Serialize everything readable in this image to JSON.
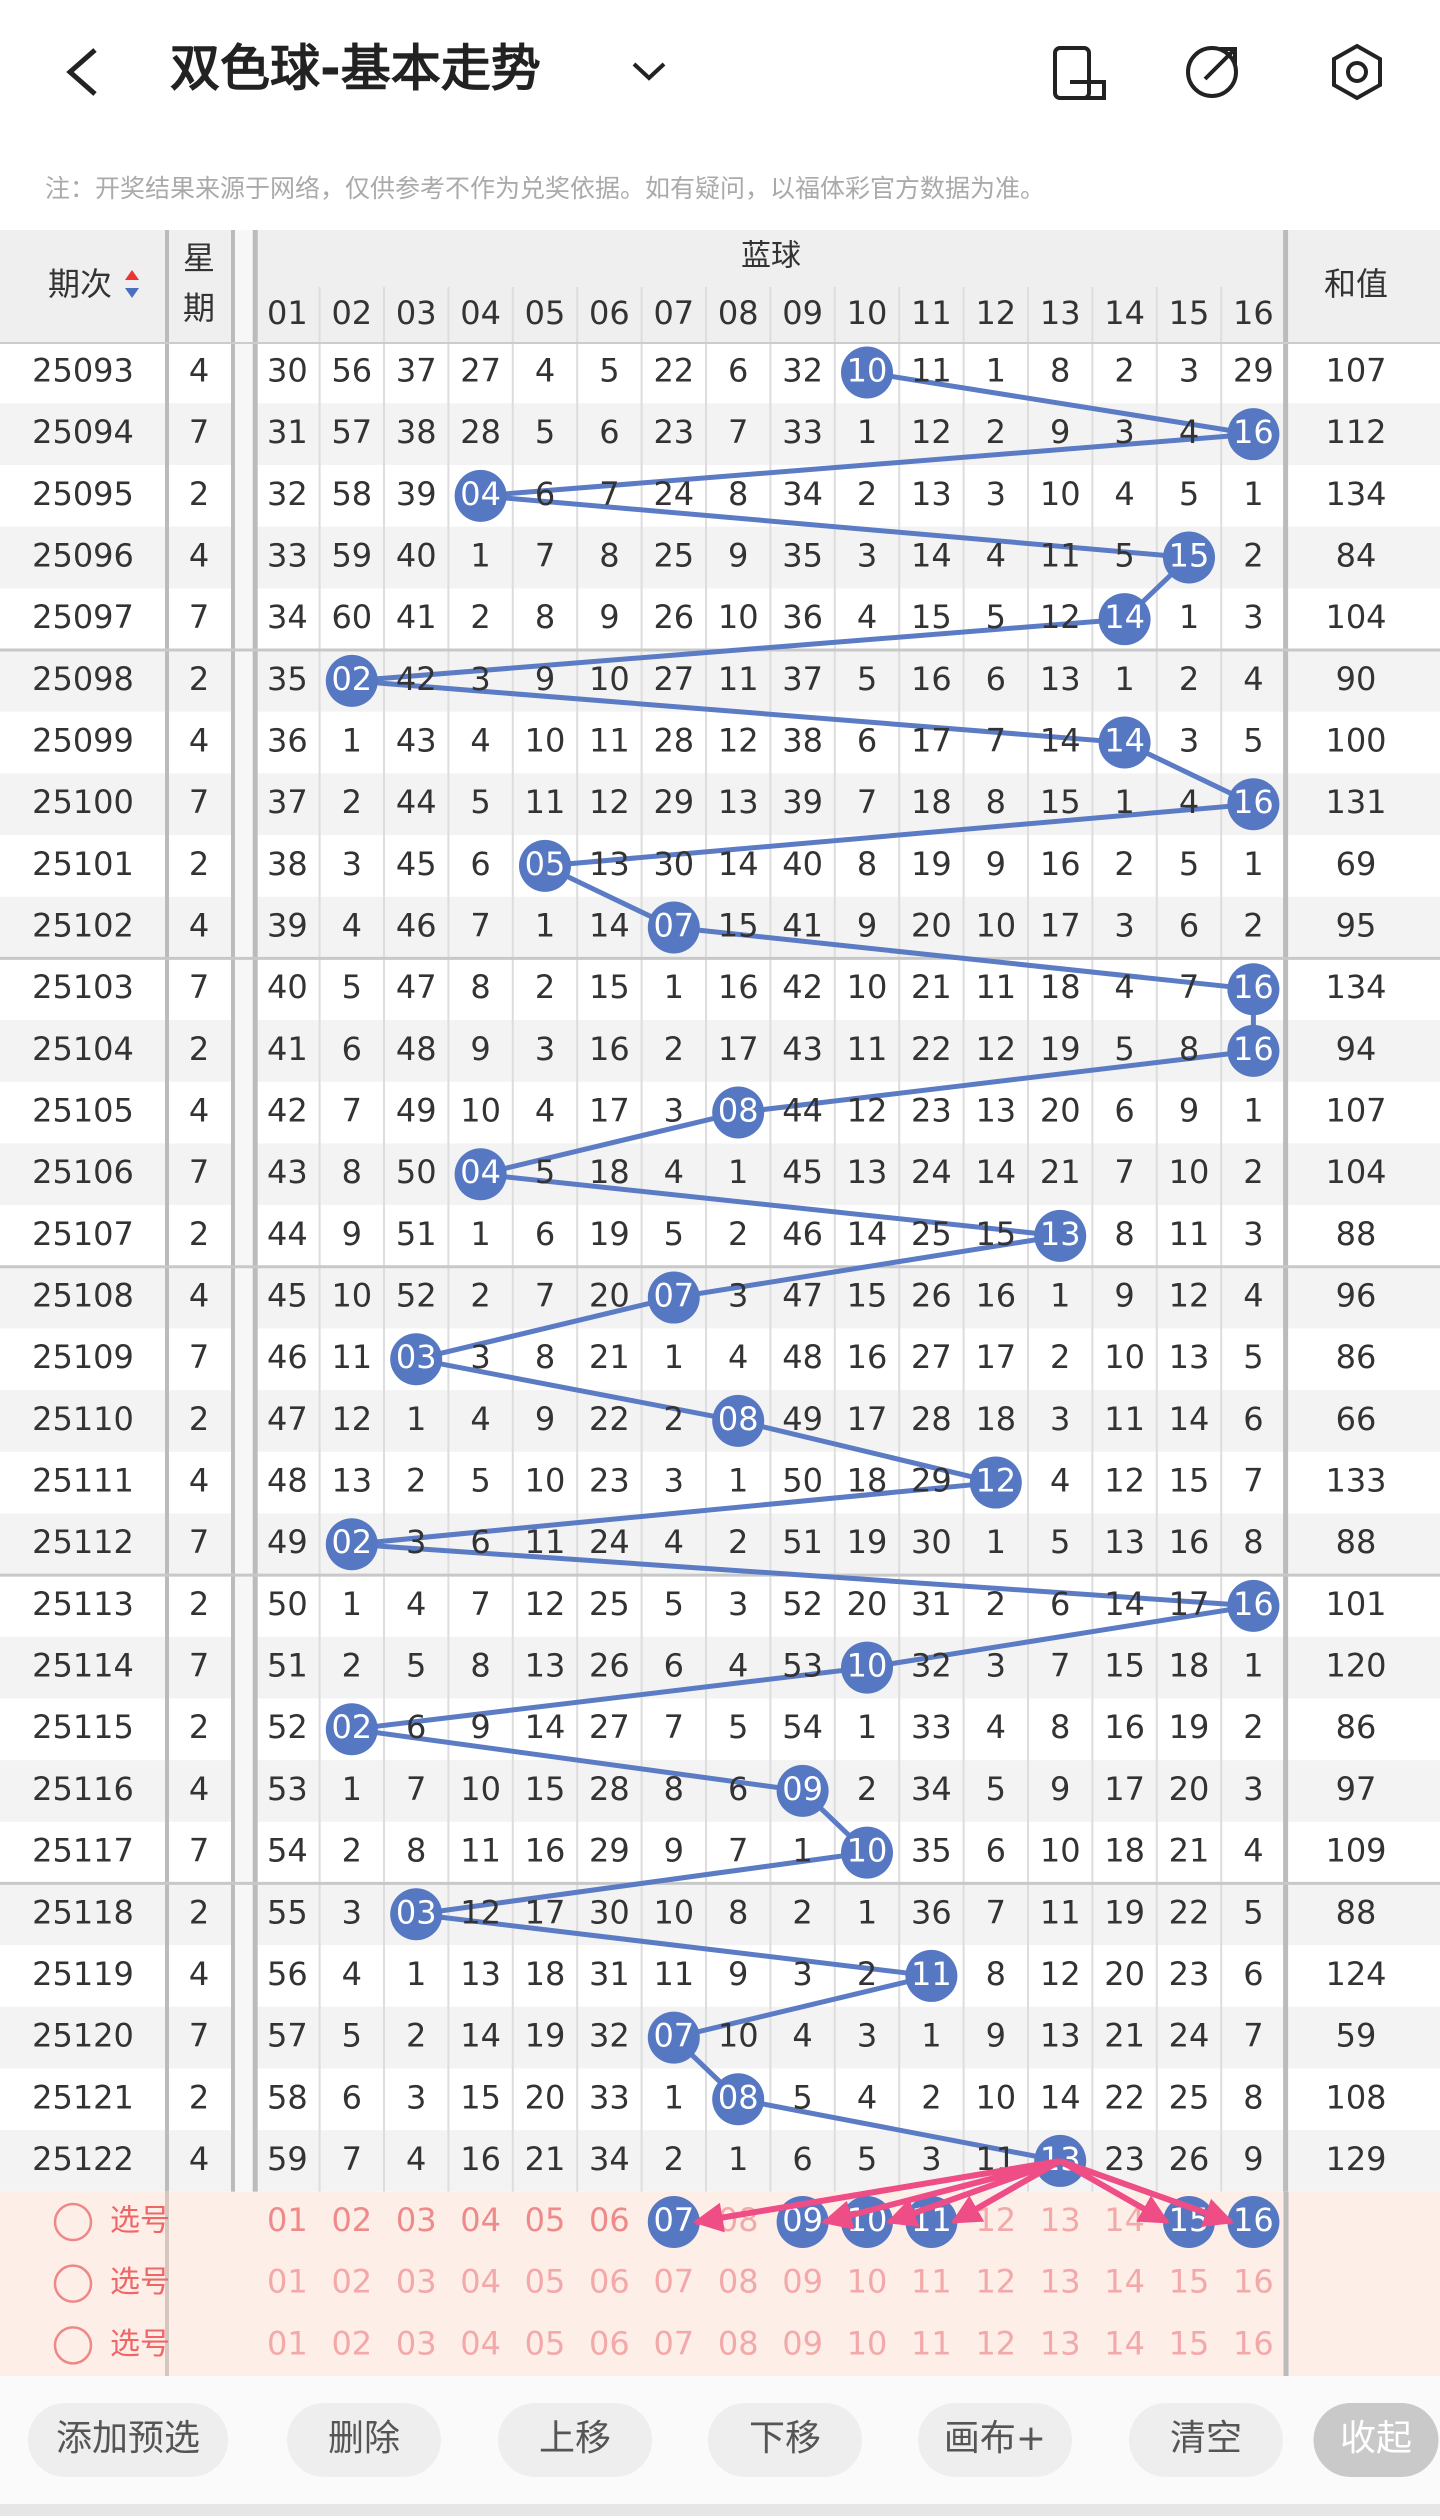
{
  "header": {
    "title": "双色球-基本走势",
    "note": "注：开奖结果来源于网络，仅供参考不作为兑奖依据。如有疑问，以福体彩官方数据为准。"
  },
  "table": {
    "col_period": "期次",
    "col_weekday_1": "星",
    "col_weekday_2": "期",
    "col_group": "蓝球",
    "col_sum": "和值",
    "numbers": [
      "01",
      "02",
      "03",
      "04",
      "05",
      "06",
      "07",
      "08",
      "09",
      "10",
      "11",
      "12",
      "13",
      "14",
      "15",
      "16"
    ],
    "rows": [
      {
        "period": 25093,
        "weekday": 4,
        "cells": [
          30,
          56,
          37,
          27,
          4,
          5,
          22,
          6,
          32,
          {
            "ball": "10"
          },
          11,
          1,
          8,
          2,
          3,
          29
        ],
        "sum": 107
      },
      {
        "period": 25094,
        "weekday": 7,
        "cells": [
          31,
          57,
          38,
          28,
          5,
          6,
          23,
          7,
          33,
          1,
          12,
          2,
          9,
          3,
          4,
          {
            "ball": "16"
          }
        ],
        "sum": 112
      },
      {
        "period": 25095,
        "weekday": 2,
        "cells": [
          32,
          58,
          39,
          {
            "ball": "04"
          },
          6,
          7,
          24,
          8,
          34,
          2,
          13,
          3,
          10,
          4,
          5,
          1
        ],
        "sum": 134
      },
      {
        "period": 25096,
        "weekday": 4,
        "cells": [
          33,
          59,
          40,
          1,
          7,
          8,
          25,
          9,
          35,
          3,
          14,
          4,
          11,
          5,
          {
            "ball": "15"
          },
          2
        ],
        "sum": 84
      },
      {
        "period": 25097,
        "weekday": 7,
        "cells": [
          34,
          60,
          41,
          2,
          8,
          9,
          26,
          10,
          36,
          4,
          15,
          5,
          12,
          {
            "ball": "14"
          },
          1,
          3
        ],
        "sum": 104
      },
      {
        "period": 25098,
        "weekday": 2,
        "cells": [
          35,
          {
            "ball": "02"
          },
          42,
          3,
          9,
          10,
          27,
          11,
          37,
          5,
          16,
          6,
          13,
          1,
          2,
          4
        ],
        "sum": 90
      },
      {
        "period": 25099,
        "weekday": 4,
        "cells": [
          36,
          1,
          43,
          4,
          10,
          11,
          28,
          12,
          38,
          6,
          17,
          7,
          14,
          {
            "ball": "14"
          },
          3,
          5
        ],
        "sum": 100
      },
      {
        "period": 25100,
        "weekday": 7,
        "cells": [
          37,
          2,
          44,
          5,
          11,
          12,
          29,
          13,
          39,
          7,
          18,
          8,
          15,
          1,
          4,
          {
            "ball": "16"
          }
        ],
        "sum": 131
      },
      {
        "period": 25101,
        "weekday": 2,
        "cells": [
          38,
          3,
          45,
          6,
          {
            "ball": "05"
          },
          13,
          30,
          14,
          40,
          8,
          19,
          9,
          16,
          2,
          5,
          1
        ],
        "sum": 69
      },
      {
        "period": 25102,
        "weekday": 4,
        "cells": [
          39,
          4,
          46,
          7,
          1,
          14,
          {
            "ball": "07"
          },
          15,
          41,
          9,
          20,
          10,
          17,
          3,
          6,
          2
        ],
        "sum": 95
      },
      {
        "period": 25103,
        "weekday": 7,
        "cells": [
          40,
          5,
          47,
          8,
          2,
          15,
          1,
          16,
          42,
          10,
          21,
          11,
          18,
          4,
          7,
          {
            "ball": "16"
          }
        ],
        "sum": 134
      },
      {
        "period": 25104,
        "weekday": 2,
        "cells": [
          41,
          6,
          48,
          9,
          3,
          16,
          2,
          17,
          43,
          11,
          22,
          12,
          19,
          5,
          8,
          {
            "ball": "16"
          }
        ],
        "sum": 94
      },
      {
        "period": 25105,
        "weekday": 4,
        "cells": [
          42,
          7,
          49,
          10,
          4,
          17,
          3,
          {
            "ball": "08"
          },
          44,
          12,
          23,
          13,
          20,
          6,
          9,
          1
        ],
        "sum": 107
      },
      {
        "period": 25106,
        "weekday": 7,
        "cells": [
          43,
          8,
          50,
          {
            "ball": "04"
          },
          5,
          18,
          4,
          1,
          45,
          13,
          24,
          14,
          21,
          7,
          10,
          2
        ],
        "sum": 104
      },
      {
        "period": 25107,
        "weekday": 2,
        "cells": [
          44,
          9,
          51,
          1,
          6,
          19,
          5,
          2,
          46,
          14,
          25,
          15,
          {
            "ball": "13"
          },
          8,
          11,
          3
        ],
        "sum": 88
      },
      {
        "period": 25108,
        "weekday": 4,
        "cells": [
          45,
          10,
          52,
          2,
          7,
          20,
          {
            "ball": "07"
          },
          3,
          47,
          15,
          26,
          16,
          1,
          9,
          12,
          4
        ],
        "sum": 96
      },
      {
        "period": 25109,
        "weekday": 7,
        "cells": [
          46,
          11,
          {
            "ball": "03"
          },
          3,
          8,
          21,
          1,
          4,
          48,
          16,
          27,
          17,
          2,
          10,
          13,
          5
        ],
        "sum": 86
      },
      {
        "period": 25110,
        "weekday": 2,
        "cells": [
          47,
          12,
          1,
          4,
          9,
          22,
          2,
          {
            "ball": "08"
          },
          49,
          17,
          28,
          18,
          3,
          11,
          14,
          6
        ],
        "sum": 66
      },
      {
        "period": 25111,
        "weekday": 4,
        "cells": [
          48,
          13,
          2,
          5,
          10,
          23,
          3,
          1,
          50,
          18,
          29,
          {
            "ball": "12"
          },
          4,
          12,
          15,
          7
        ],
        "sum": 133
      },
      {
        "period": 25112,
        "weekday": 7,
        "cells": [
          49,
          {
            "ball": "02"
          },
          3,
          6,
          11,
          24,
          4,
          2,
          51,
          19,
          30,
          1,
          5,
          13,
          16,
          8
        ],
        "sum": 88
      },
      {
        "period": 25113,
        "weekday": 2,
        "cells": [
          50,
          1,
          4,
          7,
          12,
          25,
          5,
          3,
          52,
          20,
          31,
          2,
          6,
          14,
          17,
          {
            "ball": "16"
          }
        ],
        "sum": 101
      },
      {
        "period": 25114,
        "weekday": 7,
        "cells": [
          51,
          2,
          5,
          8,
          13,
          26,
          6,
          4,
          53,
          {
            "ball": "10"
          },
          32,
          3,
          7,
          15,
          18,
          1
        ],
        "sum": 120
      },
      {
        "period": 25115,
        "weekday": 2,
        "cells": [
          52,
          {
            "ball": "02"
          },
          6,
          9,
          14,
          27,
          7,
          5,
          54,
          1,
          33,
          4,
          8,
          16,
          19,
          2
        ],
        "sum": 86
      },
      {
        "period": 25116,
        "weekday": 4,
        "cells": [
          53,
          1,
          7,
          10,
          15,
          28,
          8,
          6,
          {
            "ball": "09"
          },
          2,
          34,
          5,
          9,
          17,
          20,
          3
        ],
        "sum": 97
      },
      {
        "period": 25117,
        "weekday": 7,
        "cells": [
          54,
          2,
          8,
          11,
          16,
          29,
          9,
          7,
          1,
          {
            "ball": "10"
          },
          35,
          6,
          10,
          18,
          21,
          4
        ],
        "sum": 109
      },
      {
        "period": 25118,
        "weekday": 2,
        "cells": [
          55,
          3,
          {
            "ball": "03"
          },
          12,
          17,
          30,
          10,
          8,
          2,
          1,
          36,
          7,
          11,
          19,
          22,
          5
        ],
        "sum": 88
      },
      {
        "period": 25119,
        "weekday": 4,
        "cells": [
          56,
          4,
          1,
          13,
          18,
          31,
          11,
          9,
          3,
          2,
          {
            "ball": "11"
          },
          8,
          12,
          20,
          23,
          6
        ],
        "sum": 124
      },
      {
        "period": 25120,
        "weekday": 7,
        "cells": [
          57,
          5,
          2,
          14,
          19,
          32,
          {
            "ball": "07"
          },
          10,
          4,
          3,
          1,
          9,
          13,
          21,
          24,
          7
        ],
        "sum": 59
      },
      {
        "period": 25121,
        "weekday": 2,
        "cells": [
          58,
          6,
          3,
          15,
          20,
          33,
          1,
          {
            "ball": "08"
          },
          5,
          4,
          2,
          10,
          14,
          22,
          25,
          8
        ],
        "sum": 108
      },
      {
        "period": 25122,
        "weekday": 4,
        "cells": [
          59,
          7,
          4,
          16,
          21,
          34,
          2,
          1,
          6,
          5,
          3,
          11,
          {
            "ball": "13"
          },
          23,
          26,
          9
        ],
        "sum": 129
      }
    ]
  },
  "selection": [
    {
      "label": "选号",
      "numbers": [
        "01",
        "02",
        "03",
        "04",
        "05",
        "06",
        {
          "ball": "07"
        },
        "08",
        {
          "ball": "09"
        },
        {
          "ball": "10"
        },
        {
          "ball": "11"
        },
        "12",
        "13",
        "14",
        {
          "ball": "15"
        },
        {
          "ball": "16"
        }
      ]
    },
    {
      "label": "选号",
      "numbers": [
        "01",
        "02",
        "03",
        "04",
        "05",
        "06",
        "07",
        "08",
        "09",
        "10",
        "11",
        "12",
        "13",
        "14",
        "15",
        "16"
      ]
    },
    {
      "label": "选号",
      "numbers": [
        "01",
        "02",
        "03",
        "04",
        "05",
        "06",
        "07",
        "08",
        "09",
        "10",
        "11",
        "12",
        "13",
        "14",
        "15",
        "16"
      ]
    }
  ],
  "buttons": [
    "添加预选",
    "删除",
    "上移",
    "下移",
    "画布+",
    "清空",
    "收起"
  ]
}
